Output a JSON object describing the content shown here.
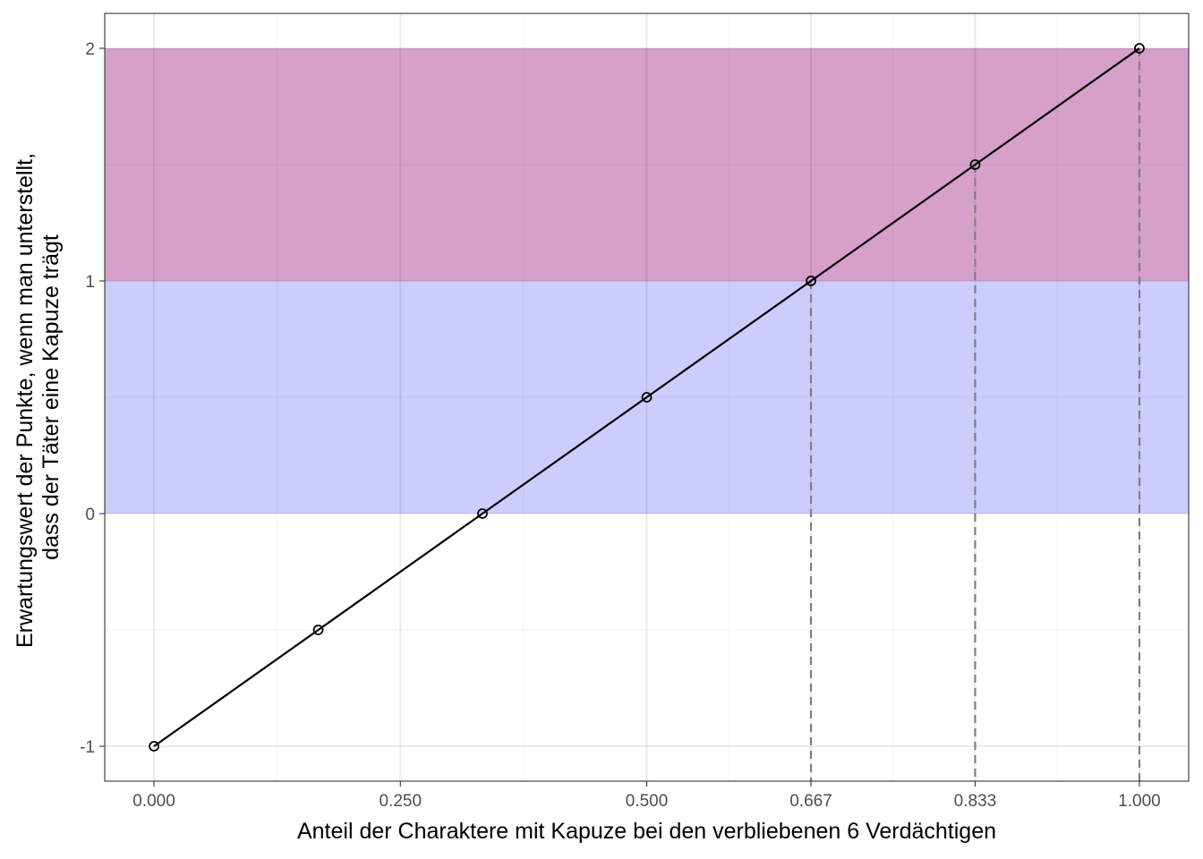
{
  "chart_data": {
    "type": "line",
    "xlabel": "Anteil der Charaktere mit Kapuze bei den verbliebenen 6 Verdächtigen",
    "ylabel_lines": [
      "Erwartungswert der Punkte, wenn man unterstellt,",
      "dass der Täter eine Kapuze trägt"
    ],
    "x_ticks": [
      0,
      0.25,
      0.5,
      0.6667,
      0.8333,
      1.0
    ],
    "x_tick_labels": [
      "0.000",
      "0.250",
      "0.500",
      "0.667",
      "0.833",
      "1.000"
    ],
    "x_minor_breaks": [
      0.125,
      0.375,
      0.5833,
      0.75,
      0.9167
    ],
    "y_ticks": [
      -1,
      0,
      1,
      2
    ],
    "y_tick_labels": [
      "-1",
      "0",
      "1",
      "2"
    ],
    "y_minor_breaks": [
      -0.5,
      0.5,
      1.5
    ],
    "xlim": [
      -0.05,
      1.05
    ],
    "ylim": [
      -1.15,
      2.15
    ],
    "grid": true,
    "series": [
      {
        "x": [
          0,
          0.1667,
          0.3333,
          0.5,
          0.6667,
          0.8333,
          1.0
        ],
        "y": [
          -1,
          -0.5,
          0,
          0.5,
          1,
          1.5,
          2
        ],
        "color": "#000000"
      }
    ],
    "bands": [
      {
        "ymin": 0,
        "ymax": 1,
        "color": "#ccccff"
      },
      {
        "ymin": 1,
        "ymax": 2,
        "color": "#d6a0cb"
      }
    ],
    "dashed_verticals": [
      0.6667,
      0.8333,
      1.0
    ],
    "dashed_color": "#7f7f7f"
  }
}
